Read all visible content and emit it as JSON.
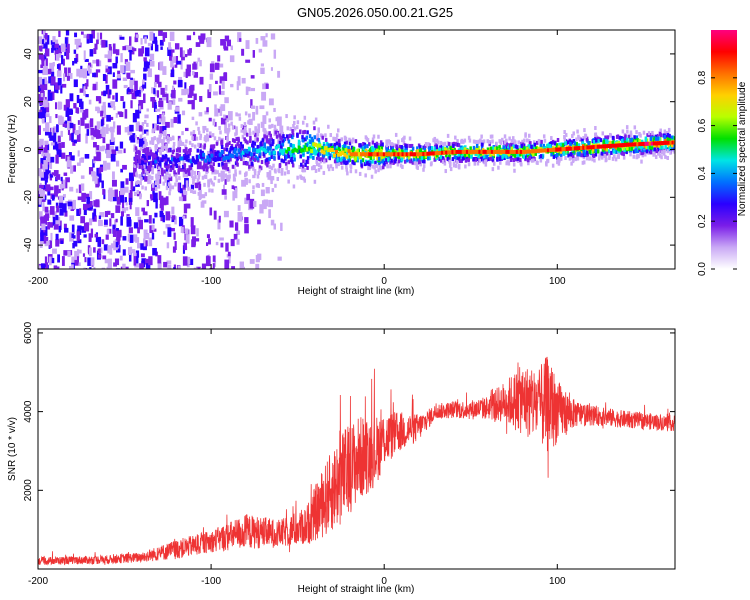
{
  "figure": {
    "title": "GN05.2026.050.00.21.G25"
  },
  "chart_data": [
    {
      "type": "heatmap",
      "name": "spectrogram",
      "title": "GN05.2026.050.00.21.G25",
      "xlabel": "Height of straight line (km)",
      "ylabel": "Frequency (Hz)",
      "xlim": [
        -200,
        168
      ],
      "ylim": [
        -50,
        50
      ],
      "xticks": [
        -200,
        -100,
        0,
        100
      ],
      "yticks": [
        -40,
        -20,
        0,
        20,
        40
      ],
      "colorbar": {
        "label": "Normalized spectral amplitude",
        "range": [
          0,
          1
        ],
        "ticks": [
          "0.0",
          "0.2",
          "0.4",
          "0.6",
          "0.8"
        ],
        "tick_values": [
          0.0,
          0.2,
          0.4,
          0.6,
          0.8
        ],
        "colors": [
          "#ffffff",
          "#c9a8f5",
          "#7a1de8",
          "#2a00ff",
          "#0070ff",
          "#00e5e5",
          "#00e000",
          "#b8ff00",
          "#ffd000",
          "#ff7000",
          "#ff0000",
          "#ff007f"
        ]
      },
      "ridge": {
        "x": [
          -140,
          -120,
          -100,
          -80,
          -60,
          -50,
          -40,
          -30,
          -20,
          0,
          20,
          40,
          60,
          80,
          100,
          120,
          140,
          168
        ],
        "freq_hz": [
          -4,
          -5,
          -3,
          -1,
          0,
          0,
          1,
          -1,
          -2,
          -2,
          -2,
          -1,
          -1,
          -1,
          0,
          1,
          2,
          3
        ],
        "amplitude": [
          0.25,
          0.3,
          0.33,
          0.38,
          0.45,
          0.55,
          0.65,
          0.7,
          0.8,
          0.85,
          0.88,
          0.85,
          0.85,
          0.82,
          0.85,
          0.9,
          0.92,
          0.9
        ]
      },
      "noise_region_x": [
        -200,
        -60
      ]
    },
    {
      "type": "line",
      "name": "snr",
      "xlabel": "Height of straight line (km)",
      "ylabel": "SNR (10 * v/v)",
      "xlim": [
        -200,
        168
      ],
      "ylim": [
        0,
        6100
      ],
      "xticks": [
        -200,
        -100,
        0,
        100
      ],
      "yticks": [
        2000,
        4000,
        6000
      ],
      "color": "#ee3333",
      "envelope": {
        "x": [
          -200,
          -160,
          -140,
          -120,
          -100,
          -80,
          -60,
          -45,
          -35,
          -25,
          -15,
          -5,
          0,
          10,
          20,
          25,
          30,
          40,
          50,
          60,
          70,
          80,
          90,
          95,
          100,
          110,
          120,
          140,
          168
        ],
        "y": [
          200,
          240,
          300,
          500,
          700,
          950,
          900,
          1100,
          1700,
          2300,
          2800,
          3000,
          3300,
          3500,
          3600,
          3800,
          4000,
          4050,
          4050,
          4100,
          4250,
          4300,
          4150,
          4200,
          4000,
          3950,
          3900,
          3800,
          3700
        ],
        "spread": [
          100,
          110,
          130,
          250,
          280,
          450,
          350,
          500,
          900,
          1200,
          1100,
          900,
          700,
          500,
          350,
          250,
          200,
          220,
          250,
          300,
          550,
          900,
          1000,
          1300,
          800,
          350,
          250,
          220,
          200
        ]
      }
    }
  ]
}
